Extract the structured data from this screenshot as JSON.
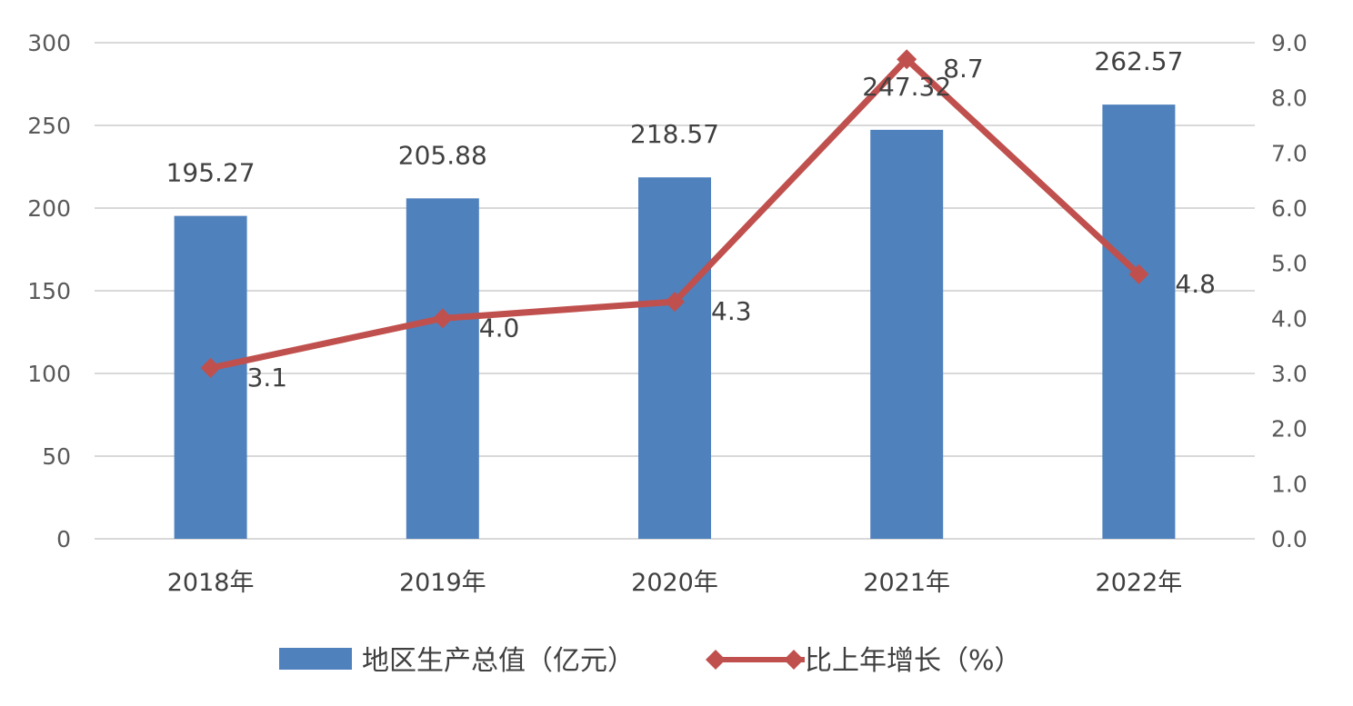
{
  "chart_data": {
    "type": "bar",
    "categories": [
      "2018年",
      "2019年",
      "2020年",
      "2021年",
      "2022年"
    ],
    "series": [
      {
        "name": "地区生产总值（亿元）",
        "type": "bar",
        "axis": "left",
        "values": [
          195.27,
          205.88,
          218.57,
          247.32,
          262.57
        ],
        "labels": [
          "195.27",
          "205.88",
          "218.57",
          "247.32",
          "262.57"
        ],
        "color": "#4F81BD"
      },
      {
        "name": "比上年增长（%）",
        "type": "line",
        "axis": "right",
        "marker": "diamond",
        "values": [
          3.1,
          4.0,
          4.3,
          8.7,
          4.8
        ],
        "labels": [
          "3.1",
          "4.0",
          "4.3",
          "8.7",
          "4.8"
        ],
        "color": "#C0504D"
      }
    ],
    "y_left": {
      "ylim": [
        0,
        300
      ],
      "ticks": [
        "0",
        "50",
        "100",
        "150",
        "200",
        "250",
        "300"
      ]
    },
    "y_right": {
      "ylim": [
        0,
        9
      ],
      "ticks": [
        "0.0",
        "1.0",
        "2.0",
        "3.0",
        "4.0",
        "5.0",
        "6.0",
        "7.0",
        "8.0",
        "9.0"
      ]
    },
    "grid": true,
    "legend": "bottom",
    "title": "",
    "xlabel": "",
    "ylabel": ""
  }
}
